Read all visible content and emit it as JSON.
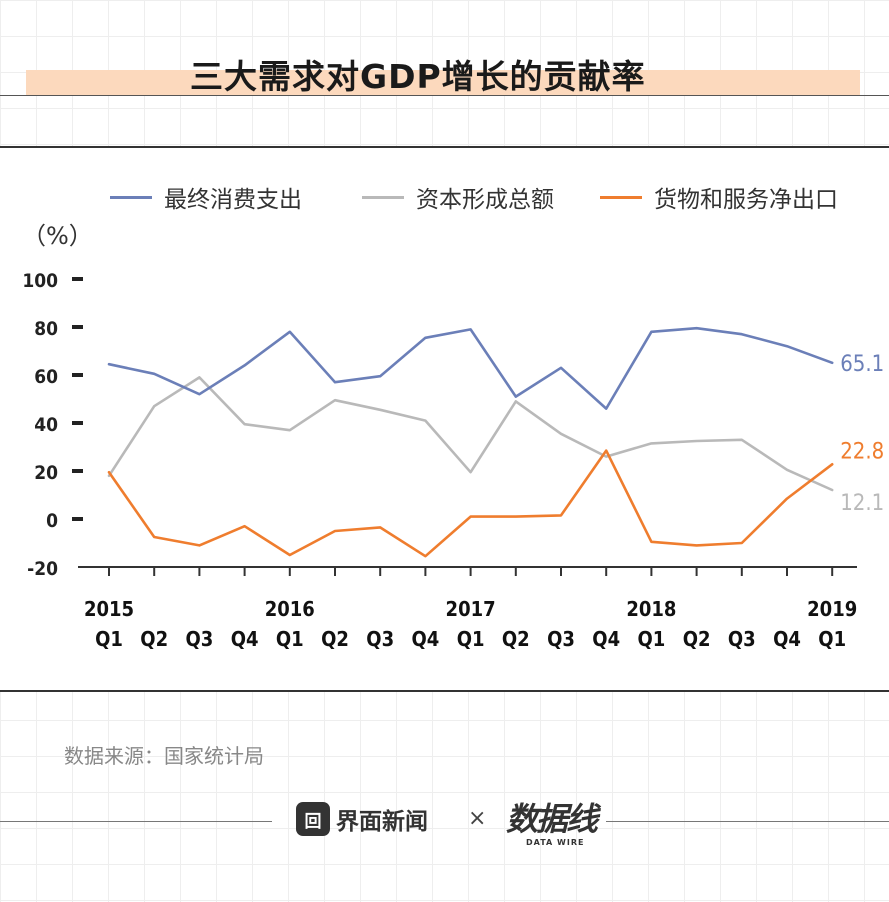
{
  "title": "三大需求对GDP增长的贡献率",
  "unit_label": "（%）",
  "legend": [
    {
      "name": "最终消费支出",
      "color": "#6b7fb8"
    },
    {
      "name": "资本形成总额",
      "color": "#b9b9b9"
    },
    {
      "name": "货物和服务净出口",
      "color": "#ef7d2e"
    }
  ],
  "source": "数据来源：国家统计局",
  "footer": {
    "brand_logo_glyph": "回",
    "brand_name": "界面新闻",
    "times": "×",
    "datawire_main": "数据线",
    "datawire_sub": "DATA WIRE"
  },
  "chart_data": {
    "type": "line",
    "title": "三大需求对GDP增长的贡献率",
    "xlabel": "",
    "ylabel": "（%）",
    "ylim": [
      -20,
      100
    ],
    "yticks": [
      -20,
      0,
      20,
      40,
      60,
      80,
      100
    ],
    "grid": false,
    "legend_position": "top",
    "categories": [
      "2015 Q1",
      "Q2",
      "Q3",
      "Q4",
      "2016 Q1",
      "Q2",
      "Q3",
      "Q4",
      "2017 Q1",
      "Q2",
      "Q3",
      "Q4",
      "2018 Q1",
      "Q2",
      "Q3",
      "Q4",
      "2019 Q1"
    ],
    "x_year_labels": [
      "2015",
      "",
      "",
      "",
      "2016",
      "",
      "",
      "",
      "2017",
      "",
      "",
      "",
      "2018",
      "",
      "",
      "",
      "2019"
    ],
    "x_quarter_labels": [
      "Q1",
      "Q2",
      "Q3",
      "Q4",
      "Q1",
      "Q2",
      "Q3",
      "Q4",
      "Q1",
      "Q2",
      "Q3",
      "Q4",
      "Q1",
      "Q2",
      "Q3",
      "Q4",
      "Q1"
    ],
    "series": [
      {
        "name": "最终消费支出",
        "color": "#6b7fb8",
        "values": [
          64.5,
          60.5,
          52,
          64,
          78,
          57,
          59.5,
          75.5,
          79,
          51,
          63,
          46,
          78,
          79.5,
          77,
          72,
          65.1
        ],
        "end_label": "65.1"
      },
      {
        "name": "资本形成总额",
        "color": "#b9b9b9",
        "values": [
          18,
          47,
          59,
          39.5,
          37,
          49.5,
          45.5,
          41,
          19.5,
          49,
          35.5,
          26,
          31.5,
          32.5,
          33,
          20.5,
          12.1
        ],
        "end_label": "12.1"
      },
      {
        "name": "货物和服务净出口",
        "color": "#ef7d2e",
        "values": [
          19.5,
          -7.5,
          -11,
          -3,
          -15,
          -5,
          -3.5,
          -15.5,
          1,
          1,
          1.5,
          28.5,
          -9.5,
          -11,
          -10,
          8.5,
          22.8
        ],
        "end_label": "22.8"
      }
    ]
  }
}
